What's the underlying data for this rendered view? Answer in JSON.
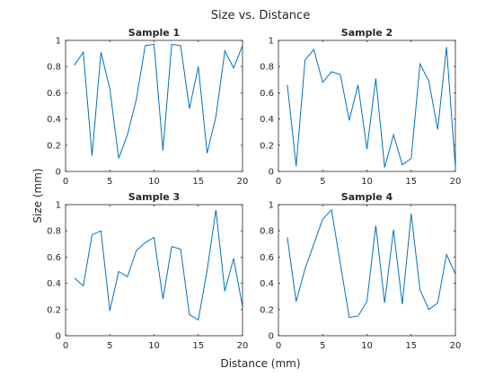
{
  "figure": {
    "title": "Size vs. Distance",
    "xlabel": "Distance (mm)",
    "ylabel": "Size (mm)"
  },
  "chart_data": [
    {
      "type": "line",
      "title": "Sample 1",
      "xlim": [
        0,
        20
      ],
      "ylim": [
        0,
        1
      ],
      "xticks": [
        "0",
        "5",
        "10",
        "15",
        "20"
      ],
      "yticks": [
        "0",
        "0.2",
        "0.4",
        "0.6",
        "0.8",
        "1"
      ],
      "series": [
        {
          "color": "#0072BD",
          "x": [
            1,
            2,
            3,
            4,
            5,
            6,
            7,
            8,
            9,
            10,
            11,
            12,
            13,
            14,
            15,
            16,
            17,
            18,
            19,
            20
          ],
          "y": [
            0.81,
            0.91,
            0.12,
            0.91,
            0.63,
            0.1,
            0.28,
            0.55,
            0.96,
            0.97,
            0.16,
            0.97,
            0.96,
            0.48,
            0.8,
            0.14,
            0.42,
            0.92,
            0.79,
            0.96
          ]
        }
      ]
    },
    {
      "type": "line",
      "title": "Sample 2",
      "xlim": [
        0,
        20
      ],
      "ylim": [
        0,
        1
      ],
      "xticks": [
        "0",
        "5",
        "10",
        "15",
        "20"
      ],
      "yticks": [
        "0",
        "0.2",
        "0.4",
        "0.6",
        "0.8",
        "1"
      ],
      "series": [
        {
          "color": "#0072BD",
          "x": [
            1,
            2,
            3,
            4,
            5,
            6,
            7,
            8,
            9,
            10,
            11,
            12,
            13,
            14,
            15,
            16,
            17,
            18,
            19,
            20
          ],
          "y": [
            0.66,
            0.04,
            0.85,
            0.93,
            0.68,
            0.76,
            0.74,
            0.39,
            0.66,
            0.17,
            0.71,
            0.03,
            0.28,
            0.05,
            0.1,
            0.82,
            0.69,
            0.32,
            0.95,
            0.03
          ]
        }
      ]
    },
    {
      "type": "line",
      "title": "Sample 3",
      "xlim": [
        0,
        20
      ],
      "ylim": [
        0,
        1
      ],
      "xticks": [
        "0",
        "5",
        "10",
        "15",
        "20"
      ],
      "yticks": [
        "0",
        "0.2",
        "0.4",
        "0.6",
        "0.8",
        "1"
      ],
      "series": [
        {
          "color": "#0072BD",
          "x": [
            1,
            2,
            3,
            4,
            5,
            6,
            7,
            8,
            9,
            10,
            11,
            12,
            13,
            14,
            15,
            16,
            17,
            18,
            19,
            20
          ],
          "y": [
            0.44,
            0.38,
            0.77,
            0.8,
            0.19,
            0.49,
            0.45,
            0.65,
            0.71,
            0.75,
            0.28,
            0.68,
            0.66,
            0.16,
            0.12,
            0.5,
            0.96,
            0.34,
            0.59,
            0.22
          ]
        }
      ]
    },
    {
      "type": "line",
      "title": "Sample 4",
      "xlim": [
        0,
        20
      ],
      "ylim": [
        0,
        1
      ],
      "xticks": [
        "0",
        "5",
        "10",
        "15",
        "20"
      ],
      "yticks": [
        "0",
        "0.2",
        "0.4",
        "0.6",
        "0.8",
        "1"
      ],
      "series": [
        {
          "color": "#0072BD",
          "x": [
            1,
            2,
            3,
            4,
            5,
            6,
            7,
            8,
            9,
            10,
            11,
            12,
            13,
            14,
            15,
            16,
            17,
            18,
            19,
            20
          ],
          "y": [
            0.75,
            0.26,
            0.51,
            0.7,
            0.89,
            0.96,
            0.55,
            0.14,
            0.15,
            0.26,
            0.84,
            0.25,
            0.81,
            0.24,
            0.93,
            0.35,
            0.2,
            0.25,
            0.62,
            0.47
          ]
        }
      ]
    }
  ]
}
